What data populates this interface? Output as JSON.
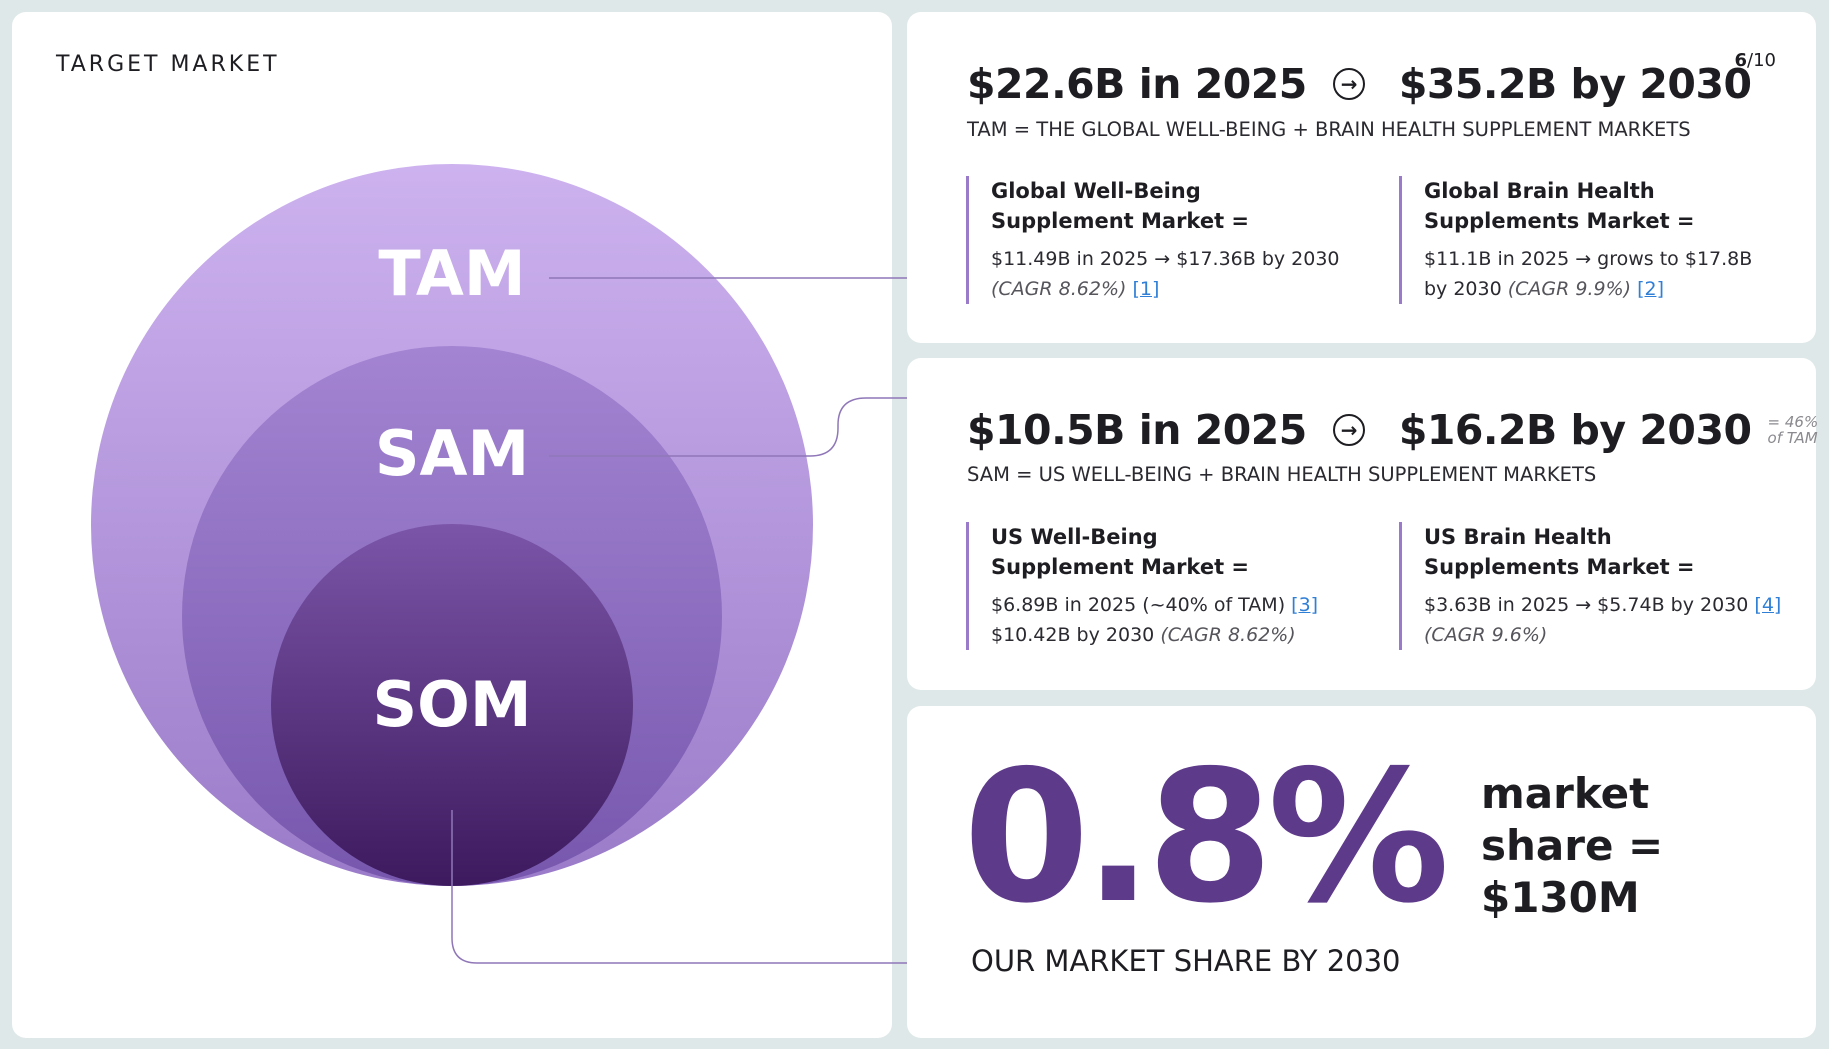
{
  "page": {
    "section_title": "TARGET MARKET",
    "page_current": "6",
    "page_total": "/10"
  },
  "venn": {
    "labels": {
      "tam": "TAM",
      "sam": "SAM",
      "som": "SOM"
    },
    "colors": {
      "tam_top": "#cdb2ef",
      "tam_bottom": "#9a7bc9",
      "sam_top": "#a384d2",
      "sam_bottom": "#7657ad",
      "som_top": "#7b55a8",
      "som_bottom": "#3d1a5e",
      "connector": "#8f77b8"
    }
  },
  "tam": {
    "value_2025": "$22.6B in 2025",
    "arrow": "→",
    "value_2030": "$35.2B by 2030",
    "definition": "TAM = THE GLOBAL WELL-BEING + BRAIN HEALTH SUPPLEMENT MARKETS",
    "blocks": [
      {
        "title_l1": "Global Well-Being",
        "title_l2": "Supplement Market =",
        "line1": "$11.49B in 2025 → $17.36B by 2030",
        "line2_italic": "(CAGR 8.62%)",
        "ref": "[1]"
      },
      {
        "title_l1": "Global Brain Health",
        "title_l2": "Supplements Market =",
        "line1": "$11.1B in 2025 → grows to $17.8B",
        "line2_plain": "by 2030",
        "line2_italic": "(CAGR 9.9%)",
        "ref": "[2]"
      }
    ]
  },
  "sam": {
    "value_2025": "$10.5B in 2025",
    "arrow": "→",
    "value_2030": "$16.2B by 2030",
    "share_l1": "= 46%",
    "share_l2": "of TAM",
    "definition": "SAM = US WELL-BEING + BRAIN HEALTH SUPPLEMENT MARKETS",
    "blocks": [
      {
        "title_l1": "US Well-Being",
        "title_l2": "Supplement Market =",
        "line1": "$6.89B in 2025 (~40% of TAM)",
        "ref": "[3]",
        "line2_plain": "$10.42B by 2030",
        "line2_italic": "(CAGR 8.62%)"
      },
      {
        "title_l1": "US Brain Health",
        "title_l2": "Supplements Market =",
        "line1": "$3.63B in 2025 → $5.74B by 2030",
        "ref": "[4]",
        "line2_italic": "(CAGR 9.6%)"
      }
    ]
  },
  "som": {
    "big_value": "0.8%",
    "side_l1": "market",
    "side_l2": "share =",
    "side_l3": "$130M",
    "caption": "OUR MARKET SHARE BY 2030"
  }
}
